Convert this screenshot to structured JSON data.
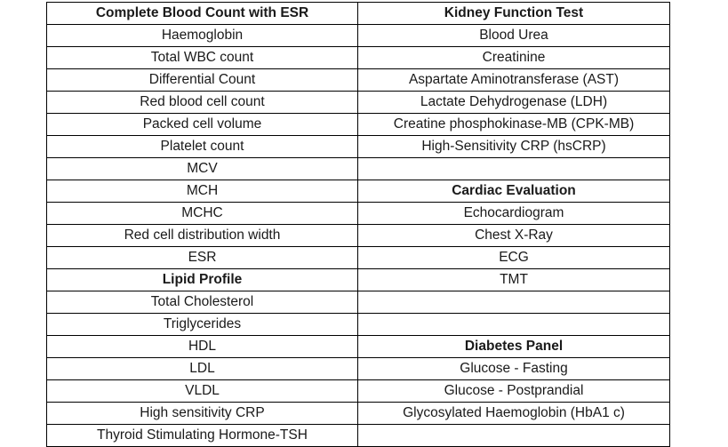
{
  "rows": [
    [
      {
        "text": "Complete Blood Count with ESR",
        "bold": true
      },
      {
        "text": "Kidney Function Test",
        "bold": true
      }
    ],
    [
      {
        "text": "Haemoglobin"
      },
      {
        "text": "Blood Urea"
      }
    ],
    [
      {
        "text": "Total WBC count"
      },
      {
        "text": "Creatinine"
      }
    ],
    [
      {
        "text": "Differential Count"
      },
      {
        "text": "Aspartate Aminotransferase (AST)"
      }
    ],
    [
      {
        "text": "Red blood cell count"
      },
      {
        "text": "Lactate Dehydrogenase (LDH)"
      }
    ],
    [
      {
        "text": "Packed cell volume"
      },
      {
        "text": "Creatine phosphokinase-MB (CPK-MB)"
      }
    ],
    [
      {
        "text": "Platelet count"
      },
      {
        "text": "High-Sensitivity CRP (hsCRP)"
      }
    ],
    [
      {
        "text": "MCV"
      },
      {
        "text": ""
      }
    ],
    [
      {
        "text": "MCH"
      },
      {
        "text": "Cardiac Evaluation",
        "bold": true
      }
    ],
    [
      {
        "text": "MCHC"
      },
      {
        "text": "Echocardiogram"
      }
    ],
    [
      {
        "text": "Red cell distribution width"
      },
      {
        "text": "Chest X-Ray"
      }
    ],
    [
      {
        "text": "ESR"
      },
      {
        "text": "ECG"
      }
    ],
    [
      {
        "text": "Lipid Profile",
        "bold": true
      },
      {
        "text": "TMT"
      }
    ],
    [
      {
        "text": "Total Cholesterol"
      },
      {
        "text": ""
      }
    ],
    [
      {
        "text": "Triglycerides"
      },
      {
        "text": ""
      }
    ],
    [
      {
        "text": "HDL"
      },
      {
        "text": "Diabetes Panel",
        "bold": true
      }
    ],
    [
      {
        "text": "LDL"
      },
      {
        "text": "Glucose - Fasting"
      }
    ],
    [
      {
        "text": "VLDL"
      },
      {
        "text": "Glucose - Postprandial"
      }
    ],
    [
      {
        "text": "High sensitivity CRP"
      },
      {
        "text": "Glycosylated Haemoglobin (HbA1 c)"
      }
    ],
    [
      {
        "text": "Thyroid Stimulating Hormone-TSH"
      },
      {
        "text": ""
      }
    ]
  ]
}
